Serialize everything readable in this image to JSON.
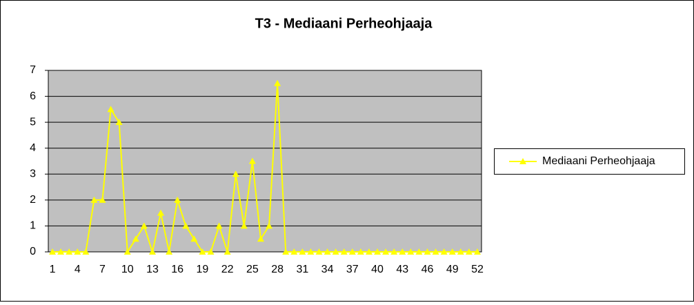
{
  "chart_data": {
    "type": "line",
    "title": "T3 - Mediaani Perheohjaaja",
    "categories": [
      "1",
      null,
      null,
      "4",
      null,
      null,
      "7",
      null,
      null,
      "10",
      null,
      null,
      "13",
      null,
      null,
      "16",
      null,
      null,
      "19",
      null,
      null,
      "22",
      null,
      null,
      "25",
      null,
      null,
      "28",
      null,
      null,
      "31",
      null,
      null,
      "34",
      null,
      null,
      "37",
      null,
      null,
      "40",
      null,
      null,
      "43",
      null,
      null,
      "46",
      null,
      null,
      "49",
      null,
      null,
      "52"
    ],
    "series": [
      {
        "name": "Mediaani Perheohjaaja",
        "color": "#ffff00",
        "values": [
          0,
          0,
          0,
          0,
          0,
          2,
          2,
          5.5,
          5,
          0,
          0.5,
          1,
          0,
          1.5,
          0,
          2,
          1,
          0.5,
          0,
          0,
          1,
          0,
          3,
          1,
          3.5,
          0.5,
          1,
          6.5,
          0,
          0,
          0,
          0,
          0,
          0,
          0,
          0,
          0,
          0,
          0,
          0,
          0,
          0,
          0,
          0,
          0,
          0,
          0,
          0,
          0,
          0,
          0,
          0
        ]
      }
    ],
    "ylim": [
      0,
      7
    ],
    "yticks": [
      0,
      1,
      2,
      3,
      4,
      5,
      6,
      7
    ],
    "grid": true,
    "plot_background": "#c0c0c0",
    "legend": "right"
  }
}
